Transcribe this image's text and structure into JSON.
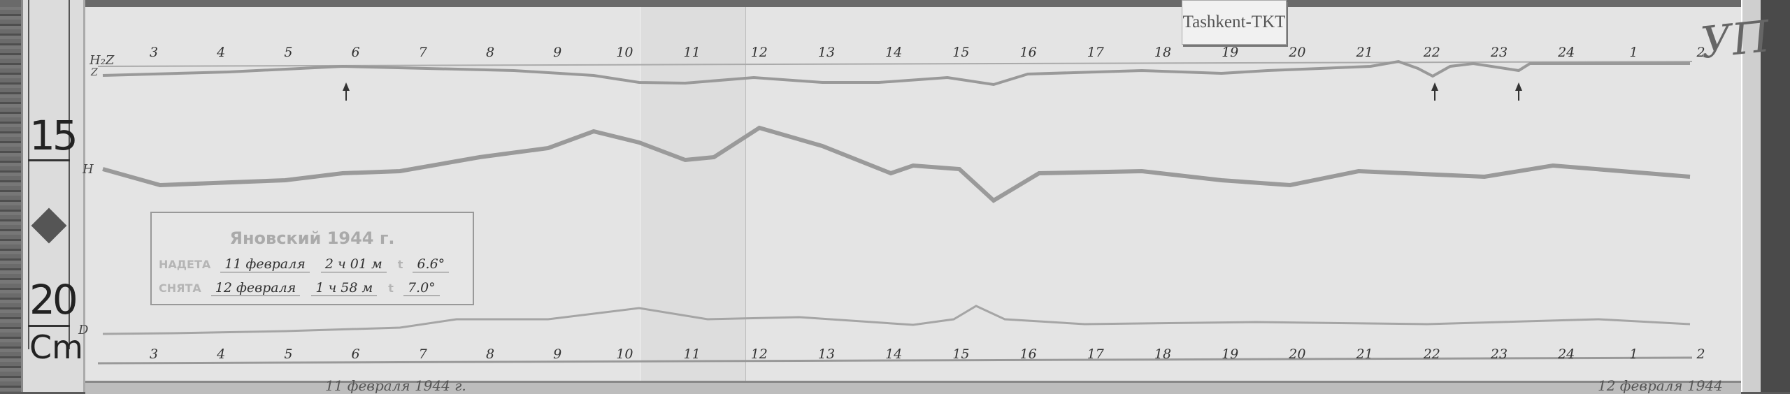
{
  "station_tag": "Tashkent-TKT",
  "ruler": {
    "numbers": [
      "15",
      "20"
    ],
    "unit": "Cm"
  },
  "trace_labels": {
    "z_top": "H₂Z",
    "z_sub": "Z",
    "h": "H",
    "d": "D"
  },
  "hour_labels_top": [
    "3",
    "4",
    "5",
    "6",
    "7",
    "8",
    "9",
    "10",
    "11",
    "12",
    "13",
    "14",
    "15",
    "16",
    "17",
    "18",
    "19",
    "20",
    "21",
    "22",
    "23",
    "24",
    "1",
    "2"
  ],
  "hour_labels_bottom": [
    "3",
    "4",
    "5",
    "6",
    "7",
    "8",
    "9",
    "10",
    "11",
    "12",
    "13",
    "14",
    "15",
    "16",
    "17",
    "18",
    "19",
    "20",
    "21",
    "22",
    "23",
    "24",
    "1",
    "2"
  ],
  "label_box": {
    "title": "Яновский 1944 г.",
    "rows": [
      {
        "label": "НАДЕТА",
        "date": "11 февраля",
        "time": "2 ч 01 м",
        "temp_label": "t",
        "temp": "6.6°"
      },
      {
        "label": "СНЯТА",
        "date": "12 февраля",
        "time": "1 ч 58 м",
        "temp_label": "t",
        "temp": "7.0°"
      }
    ]
  },
  "corner_mark": "УП",
  "bottom_captions": [
    "11 февраля 1944 г.",
    "12 февраля 1944"
  ],
  "colors": {
    "paper": "#e4e4e4",
    "trace": "#9a9a9a",
    "ink": "#333333"
  }
}
